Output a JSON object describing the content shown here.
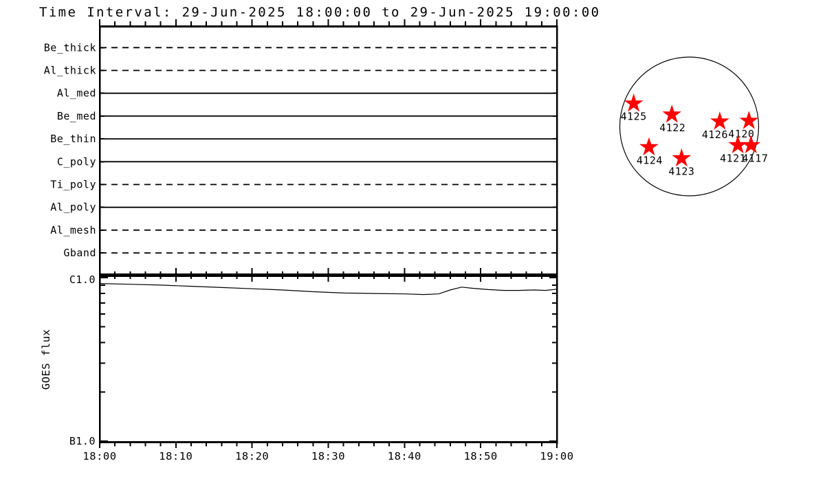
{
  "title": "Time Interval: 29-Jun-2025 18:00:00 to 29-Jun-2025 19:00:00",
  "colors": {
    "foreground": "#000000",
    "background": "#ffffff",
    "star": "#ff0000"
  },
  "chart_data": [
    {
      "type": "line",
      "title": "Instrument filter timeline",
      "categories": [
        "Be_thick",
        "Al_thick",
        "Al_med",
        "Be_med",
        "Be_thin",
        "C_poly",
        "Ti_poly",
        "Al_poly",
        "Al_mesh",
        "Gband"
      ],
      "row_styles": [
        "dashed",
        "dashed",
        "solid",
        "solid",
        "solid",
        "solid",
        "dashed",
        "solid",
        "dashed",
        "dashed"
      ],
      "x_tick_labels": [
        "18:00",
        "18:10",
        "18:20",
        "18:30",
        "18:40",
        "18:50",
        "19:00"
      ],
      "x_major_interval_min": 10,
      "x_minor_interval_min": 2,
      "x_range_min": [
        0,
        60
      ],
      "grid": false
    },
    {
      "type": "line",
      "ylabel": "GOES flux",
      "y_scale": "log",
      "ylim": [
        1e-07,
        1e-06
      ],
      "y_tick_labels": [
        "C1.0",
        "B1.0"
      ],
      "x_tick_labels": [
        "18:00",
        "18:10",
        "18:20",
        "18:30",
        "18:40",
        "18:50",
        "19:00"
      ],
      "x_major_interval_min": 10,
      "x_minor_interval_min": 2,
      "x_range_min": [
        0,
        60
      ],
      "x_minutes": [
        0,
        4,
        8,
        12,
        16,
        20,
        24,
        28,
        32,
        36,
        40,
        42.5,
        44.5,
        46,
        47.5,
        49,
        51,
        53,
        55,
        57,
        58.5,
        60
      ],
      "flux_wm2": [
        9.2e-07,
        9.1e-07,
        9e-07,
        8.85e-07,
        8.7e-07,
        8.55e-07,
        8.4e-07,
        8.2e-07,
        8.05e-07,
        8e-07,
        7.95e-07,
        7.88e-07,
        7.95e-07,
        8.4e-07,
        8.75e-07,
        8.6e-07,
        8.45e-07,
        8.35e-07,
        8.35e-07,
        8.4e-07,
        8.35e-07,
        8.5e-07
      ],
      "grid": false
    },
    {
      "type": "scatter",
      "title": "Solar disk active regions",
      "marker": "star",
      "marker_color": "#ff0000",
      "points": [
        {
          "label": "4125",
          "x": -0.8,
          "y": -0.33,
          "label_dx": 0
        },
        {
          "label": "4122",
          "x": -0.25,
          "y": -0.17,
          "label_dx": 1
        },
        {
          "label": "4126",
          "x": 0.44,
          "y": -0.07,
          "label_dx": -7
        },
        {
          "label": "4120",
          "x": 0.86,
          "y": -0.08,
          "label_dx": -11
        },
        {
          "label": "4124",
          "x": -0.58,
          "y": 0.3,
          "label_dx": 1
        },
        {
          "label": "4123",
          "x": -0.11,
          "y": 0.46,
          "label_dx": 0
        },
        {
          "label": "4121",
          "x": 0.7,
          "y": 0.27,
          "label_dx": -7
        },
        {
          "label": "4117",
          "x": 0.89,
          "y": 0.27,
          "label_dx": 6
        }
      ]
    }
  ]
}
